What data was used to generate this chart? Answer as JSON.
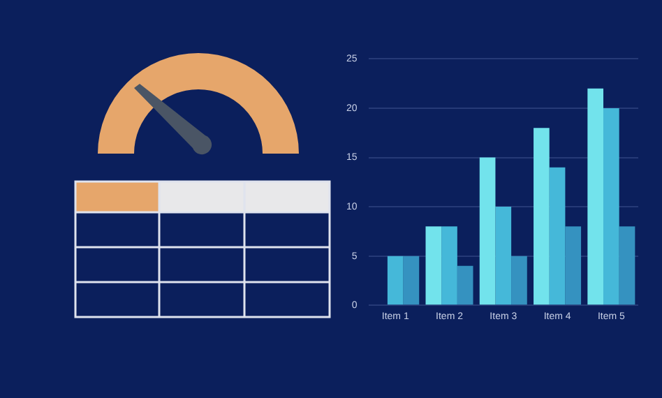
{
  "chart_data": {
    "type": "bar",
    "categories": [
      "Item 1",
      "Item 2",
      "Item 3",
      "Item 4",
      "Item 5"
    ],
    "series": [
      {
        "color": "#72e3ec",
        "values": [
          null,
          8,
          15,
          18,
          22
        ]
      },
      {
        "color": "#45b8d9",
        "values": [
          5,
          8,
          10,
          14,
          20
        ]
      },
      {
        "color": "#3592c0",
        "values": [
          5,
          4,
          5,
          8,
          8
        ]
      }
    ],
    "ylim": [
      0,
      25
    ],
    "yticks": [
      0,
      5,
      10,
      15,
      20,
      25
    ],
    "grid": "y",
    "legend": false
  }
}
